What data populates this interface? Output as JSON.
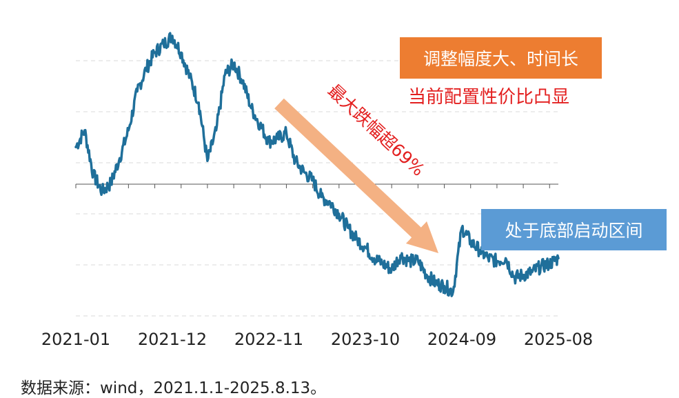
{
  "boxes": {
    "top_label": "调整幅度大、时间长",
    "bottom_label": "处于底部启动区间",
    "top_color": "#ed7d31",
    "bottom_color": "#5b9bd5"
  },
  "subtitle": "当前配置性价比凸显",
  "subtitle_color": "#e31f1f",
  "annotation": "最大跌幅超69%",
  "source_note": "数据来源：wind，2021.1.1-2025.8.13。",
  "colors": {
    "line": "#1f6f9a",
    "arrow": "#f4b183",
    "grid": "#d9d9d9",
    "axis": "#555555"
  },
  "chart_data": {
    "type": "line",
    "title": "",
    "xlabel": "",
    "ylabel": "",
    "grid": true,
    "y_axis_labels_visible": false,
    "x_tick_labels": [
      "2021-01",
      "2021-12",
      "2022-11",
      "2023-10",
      "2024-09",
      "2025-08"
    ],
    "series": [
      {
        "name": "",
        "note": "normalized relative level (peak = 100), read from plotted line; y-axis values not printed",
        "points": [
          [
            "2021-01",
            60
          ],
          [
            "2021-02",
            66
          ],
          [
            "2021-03",
            50
          ],
          [
            "2021-04",
            44
          ],
          [
            "2021-05",
            47
          ],
          [
            "2021-06",
            56
          ],
          [
            "2021-07",
            66
          ],
          [
            "2021-08",
            80
          ],
          [
            "2021-09",
            88
          ],
          [
            "2021-10",
            94
          ],
          [
            "2021-11",
            97
          ],
          [
            "2021-12",
            100
          ],
          [
            "2022-01",
            94
          ],
          [
            "2022-02",
            85
          ],
          [
            "2022-03",
            76
          ],
          [
            "2022-04",
            55
          ],
          [
            "2022-05",
            66
          ],
          [
            "2022-06",
            86
          ],
          [
            "2022-07",
            90
          ],
          [
            "2022-08",
            84
          ],
          [
            "2022-09",
            74
          ],
          [
            "2022-10",
            68
          ],
          [
            "2022-11",
            62
          ],
          [
            "2022-12",
            63
          ],
          [
            "2023-01",
            65
          ],
          [
            "2023-02",
            55
          ],
          [
            "2023-03",
            51
          ],
          [
            "2023-04",
            48
          ],
          [
            "2023-05",
            42
          ],
          [
            "2023-06",
            40
          ],
          [
            "2023-07",
            36
          ],
          [
            "2023-08",
            31
          ],
          [
            "2023-09",
            27
          ],
          [
            "2023-10",
            24
          ],
          [
            "2023-11",
            20
          ],
          [
            "2023-12",
            18
          ],
          [
            "2024-01",
            16
          ],
          [
            "2024-02",
            21
          ],
          [
            "2024-03",
            19
          ],
          [
            "2024-04",
            19
          ],
          [
            "2024-05",
            14
          ],
          [
            "2024-06",
            11
          ],
          [
            "2024-07",
            10
          ],
          [
            "2024-08",
            8
          ],
          [
            "2024-09",
            31
          ],
          [
            "2024-10",
            26
          ],
          [
            "2024-11",
            23
          ],
          [
            "2024-12",
            20
          ],
          [
            "2025-01",
            19
          ],
          [
            "2025-02",
            20
          ],
          [
            "2025-03",
            13
          ],
          [
            "2025-04",
            14
          ],
          [
            "2025-05",
            15
          ],
          [
            "2025-06",
            17
          ],
          [
            "2025-07",
            18
          ],
          [
            "2025-08",
            20
          ]
        ]
      }
    ]
  }
}
